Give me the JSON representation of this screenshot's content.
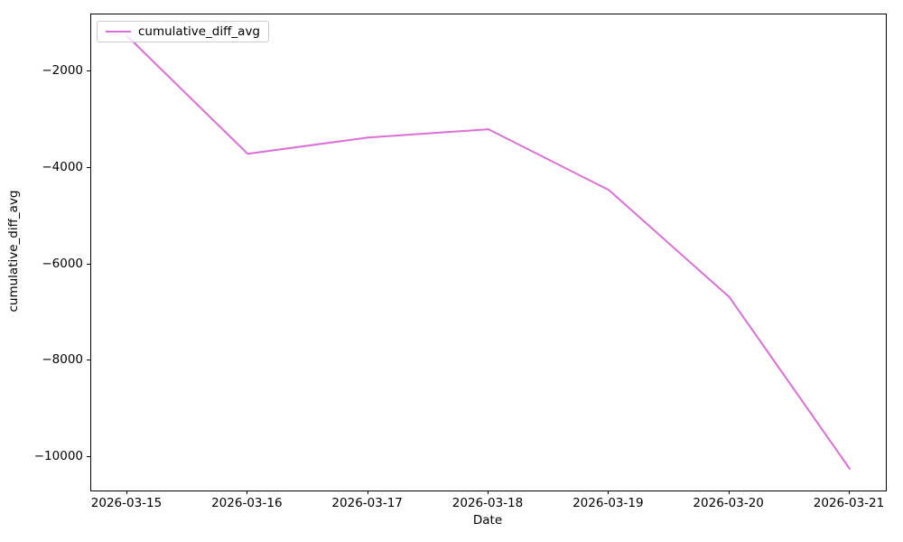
{
  "chart_data": {
    "type": "line",
    "title": "",
    "xlabel": "Date",
    "ylabel": "cumulative_diff_avg",
    "x": [
      "2026-03-15",
      "2026-03-16",
      "2026-03-17",
      "2026-03-18",
      "2026-03-19",
      "2026-03-20",
      "2026-03-21"
    ],
    "series": [
      {
        "name": "cumulative_diff_avg",
        "color": "#da70d6",
        "line_width": 2,
        "values": [
          -1270,
          -3710,
          -3370,
          -3200,
          -4460,
          -6680,
          -10240
        ]
      }
    ],
    "ylim": [
      -10690,
      -820
    ],
    "yticks": [
      -2000,
      -4000,
      -6000,
      -8000,
      -10000
    ],
    "ytick_labels": [
      "−2000",
      "−4000",
      "−6000",
      "−8000",
      "−10000"
    ],
    "grid": false,
    "legend": {
      "position": "upper left",
      "entries": [
        "cumulative_diff_avg"
      ]
    }
  }
}
